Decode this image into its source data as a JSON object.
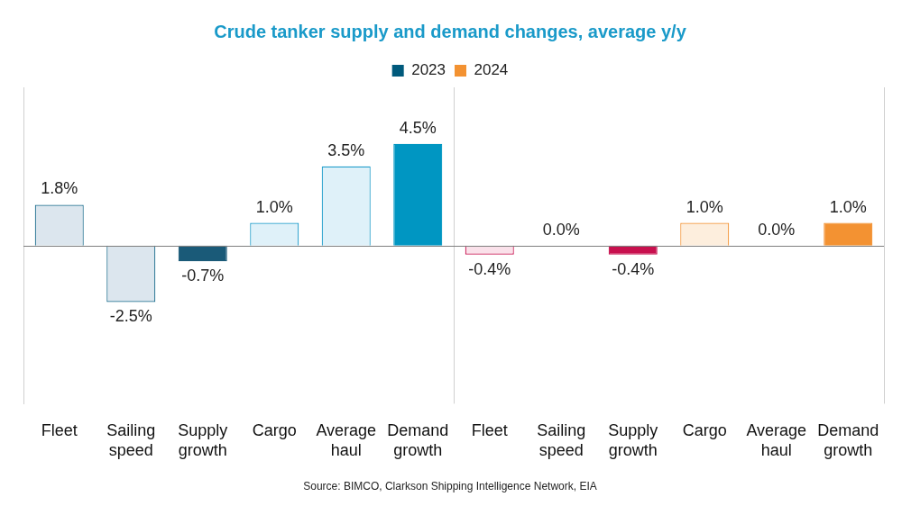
{
  "chart_data": {
    "type": "bar",
    "title": "Crude tanker supply and demand changes, average y/y",
    "source": "Source: BIMCO, Clarkson Shipping Intelligence Network, EIA",
    "categories": [
      "Fleet",
      "Sailing speed",
      "Supply growth",
      "Cargo",
      "Average haul",
      "Demand growth",
      "Fleet",
      "Sailing speed",
      "Supply growth",
      "Cargo",
      "Average haul",
      "Demand growth"
    ],
    "series": [
      {
        "name": "2023",
        "color": "#005a7c",
        "values": [
          1.8,
          -2.5,
          -0.7,
          1.0,
          3.5,
          4.5,
          null,
          null,
          null,
          null,
          null,
          null
        ],
        "value_labels": [
          "1.8%",
          "-2.5%",
          "-0.7%",
          "1.0%",
          "3.5%",
          "4.5%",
          null,
          null,
          null,
          null,
          null,
          null
        ],
        "colors": [
          "#dce6ee",
          "#dce6ee",
          "#1a5a78",
          "#dff1f9",
          "#dff1f9",
          "#0096c2",
          null,
          null,
          null,
          null,
          null,
          null
        ]
      },
      {
        "name": "2024",
        "color": "#f39232",
        "values": [
          null,
          null,
          null,
          null,
          null,
          null,
          -0.4,
          0.0,
          -0.4,
          1.0,
          0.0,
          1.0
        ],
        "value_labels": [
          null,
          null,
          null,
          null,
          null,
          null,
          "-0.4%",
          "0.0%",
          "-0.4%",
          "1.0%",
          "0.0%",
          "1.0%"
        ],
        "colors": [
          null,
          null,
          null,
          null,
          null,
          null,
          "#fae1ea",
          "#fae1ea",
          "#c8104e",
          "#fdeedd",
          "#fdeedd",
          "#f39232"
        ]
      }
    ],
    "ylim": [
      -7,
      7
    ],
    "yticks": [],
    "grid": false,
    "legend": "top",
    "data_labels": true,
    "tick_labels": "x"
  }
}
